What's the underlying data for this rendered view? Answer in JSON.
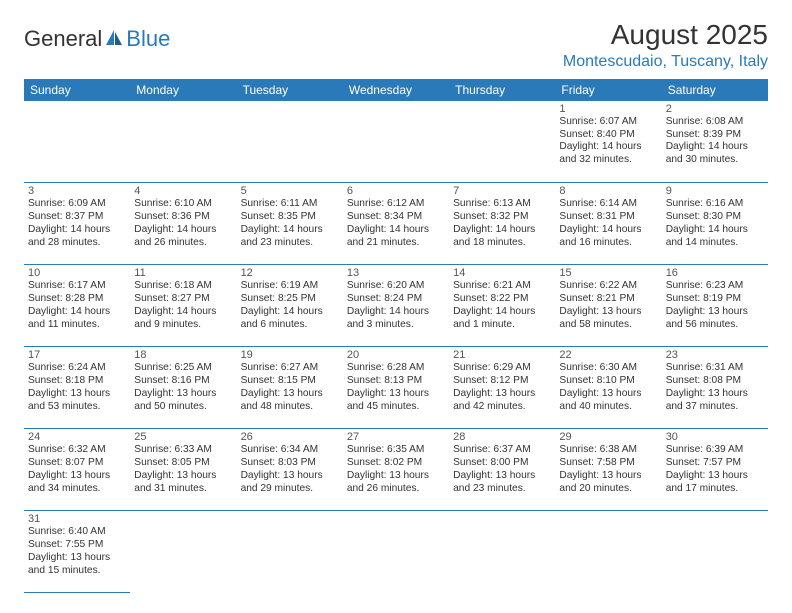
{
  "logo": {
    "part1": "General",
    "part2": "Blue"
  },
  "title": "August 2025",
  "subtitle": "Montescudaio, Tuscany, Italy",
  "colors": {
    "brand": "#2a7ab9",
    "text": "#333333",
    "bg": "#ffffff"
  },
  "weekdays": [
    "Sunday",
    "Monday",
    "Tuesday",
    "Wednesday",
    "Thursday",
    "Friday",
    "Saturday"
  ],
  "weeks": [
    [
      null,
      null,
      null,
      null,
      null,
      {
        "d": "1",
        "sr": "Sunrise: 6:07 AM",
        "ss": "Sunset: 8:40 PM",
        "dl": "Daylight: 14 hours and 32 minutes."
      },
      {
        "d": "2",
        "sr": "Sunrise: 6:08 AM",
        "ss": "Sunset: 8:39 PM",
        "dl": "Daylight: 14 hours and 30 minutes."
      }
    ],
    [
      {
        "d": "3",
        "sr": "Sunrise: 6:09 AM",
        "ss": "Sunset: 8:37 PM",
        "dl": "Daylight: 14 hours and 28 minutes."
      },
      {
        "d": "4",
        "sr": "Sunrise: 6:10 AM",
        "ss": "Sunset: 8:36 PM",
        "dl": "Daylight: 14 hours and 26 minutes."
      },
      {
        "d": "5",
        "sr": "Sunrise: 6:11 AM",
        "ss": "Sunset: 8:35 PM",
        "dl": "Daylight: 14 hours and 23 minutes."
      },
      {
        "d": "6",
        "sr": "Sunrise: 6:12 AM",
        "ss": "Sunset: 8:34 PM",
        "dl": "Daylight: 14 hours and 21 minutes."
      },
      {
        "d": "7",
        "sr": "Sunrise: 6:13 AM",
        "ss": "Sunset: 8:32 PM",
        "dl": "Daylight: 14 hours and 18 minutes."
      },
      {
        "d": "8",
        "sr": "Sunrise: 6:14 AM",
        "ss": "Sunset: 8:31 PM",
        "dl": "Daylight: 14 hours and 16 minutes."
      },
      {
        "d": "9",
        "sr": "Sunrise: 6:16 AM",
        "ss": "Sunset: 8:30 PM",
        "dl": "Daylight: 14 hours and 14 minutes."
      }
    ],
    [
      {
        "d": "10",
        "sr": "Sunrise: 6:17 AM",
        "ss": "Sunset: 8:28 PM",
        "dl": "Daylight: 14 hours and 11 minutes."
      },
      {
        "d": "11",
        "sr": "Sunrise: 6:18 AM",
        "ss": "Sunset: 8:27 PM",
        "dl": "Daylight: 14 hours and 9 minutes."
      },
      {
        "d": "12",
        "sr": "Sunrise: 6:19 AM",
        "ss": "Sunset: 8:25 PM",
        "dl": "Daylight: 14 hours and 6 minutes."
      },
      {
        "d": "13",
        "sr": "Sunrise: 6:20 AM",
        "ss": "Sunset: 8:24 PM",
        "dl": "Daylight: 14 hours and 3 minutes."
      },
      {
        "d": "14",
        "sr": "Sunrise: 6:21 AM",
        "ss": "Sunset: 8:22 PM",
        "dl": "Daylight: 14 hours and 1 minute."
      },
      {
        "d": "15",
        "sr": "Sunrise: 6:22 AM",
        "ss": "Sunset: 8:21 PM",
        "dl": "Daylight: 13 hours and 58 minutes."
      },
      {
        "d": "16",
        "sr": "Sunrise: 6:23 AM",
        "ss": "Sunset: 8:19 PM",
        "dl": "Daylight: 13 hours and 56 minutes."
      }
    ],
    [
      {
        "d": "17",
        "sr": "Sunrise: 6:24 AM",
        "ss": "Sunset: 8:18 PM",
        "dl": "Daylight: 13 hours and 53 minutes."
      },
      {
        "d": "18",
        "sr": "Sunrise: 6:25 AM",
        "ss": "Sunset: 8:16 PM",
        "dl": "Daylight: 13 hours and 50 minutes."
      },
      {
        "d": "19",
        "sr": "Sunrise: 6:27 AM",
        "ss": "Sunset: 8:15 PM",
        "dl": "Daylight: 13 hours and 48 minutes."
      },
      {
        "d": "20",
        "sr": "Sunrise: 6:28 AM",
        "ss": "Sunset: 8:13 PM",
        "dl": "Daylight: 13 hours and 45 minutes."
      },
      {
        "d": "21",
        "sr": "Sunrise: 6:29 AM",
        "ss": "Sunset: 8:12 PM",
        "dl": "Daylight: 13 hours and 42 minutes."
      },
      {
        "d": "22",
        "sr": "Sunrise: 6:30 AM",
        "ss": "Sunset: 8:10 PM",
        "dl": "Daylight: 13 hours and 40 minutes."
      },
      {
        "d": "23",
        "sr": "Sunrise: 6:31 AM",
        "ss": "Sunset: 8:08 PM",
        "dl": "Daylight: 13 hours and 37 minutes."
      }
    ],
    [
      {
        "d": "24",
        "sr": "Sunrise: 6:32 AM",
        "ss": "Sunset: 8:07 PM",
        "dl": "Daylight: 13 hours and 34 minutes."
      },
      {
        "d": "25",
        "sr": "Sunrise: 6:33 AM",
        "ss": "Sunset: 8:05 PM",
        "dl": "Daylight: 13 hours and 31 minutes."
      },
      {
        "d": "26",
        "sr": "Sunrise: 6:34 AM",
        "ss": "Sunset: 8:03 PM",
        "dl": "Daylight: 13 hours and 29 minutes."
      },
      {
        "d": "27",
        "sr": "Sunrise: 6:35 AM",
        "ss": "Sunset: 8:02 PM",
        "dl": "Daylight: 13 hours and 26 minutes."
      },
      {
        "d": "28",
        "sr": "Sunrise: 6:37 AM",
        "ss": "Sunset: 8:00 PM",
        "dl": "Daylight: 13 hours and 23 minutes."
      },
      {
        "d": "29",
        "sr": "Sunrise: 6:38 AM",
        "ss": "Sunset: 7:58 PM",
        "dl": "Daylight: 13 hours and 20 minutes."
      },
      {
        "d": "30",
        "sr": "Sunrise: 6:39 AM",
        "ss": "Sunset: 7:57 PM",
        "dl": "Daylight: 13 hours and 17 minutes."
      }
    ],
    [
      {
        "d": "31",
        "sr": "Sunrise: 6:40 AM",
        "ss": "Sunset: 7:55 PM",
        "dl": "Daylight: 13 hours and 15 minutes."
      },
      null,
      null,
      null,
      null,
      null,
      null
    ]
  ]
}
